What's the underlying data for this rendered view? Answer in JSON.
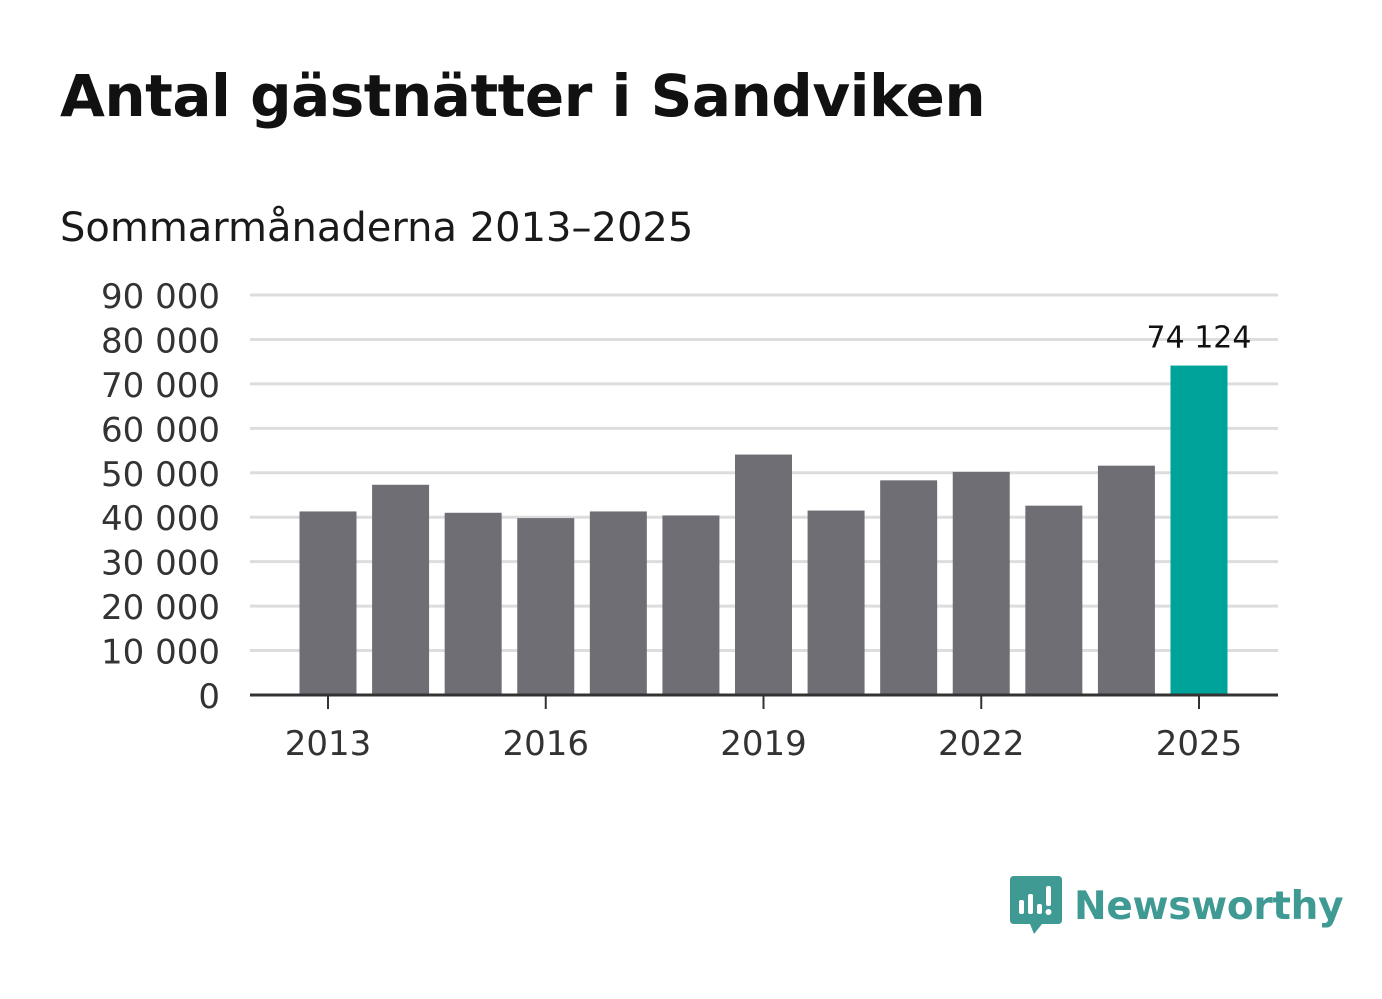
{
  "title": "Antal gästnätter i Sandviken",
  "subtitle": "Sommarmånaderna 2013–2025",
  "brand": {
    "name": "Newsworthy",
    "icon": "newsworthy-logo-icon",
    "color": "#3e9a93"
  },
  "colors": {
    "bar": "#6f6e75",
    "highlight": "#00a39a",
    "grid": "#dddddd",
    "axis": "#333333",
    "text": "#333333"
  },
  "chart_data": {
    "type": "bar",
    "categories": [
      "2013",
      "2014",
      "2015",
      "2016",
      "2017",
      "2018",
      "2019",
      "2020",
      "2021",
      "2022",
      "2023",
      "2024",
      "2025"
    ],
    "values": [
      41300,
      47300,
      41000,
      39800,
      41300,
      40400,
      54100,
      41500,
      48300,
      50200,
      42600,
      51600,
      74124
    ],
    "highlight_index": 12,
    "data_labels": [
      {
        "index": 12,
        "text": "74 124"
      }
    ],
    "x_tick_labels": [
      "2013",
      "2016",
      "2019",
      "2022",
      "2025"
    ],
    "y_tick_labels": [
      "0",
      "10 000",
      "20 000",
      "30 000",
      "40 000",
      "50 000",
      "60 000",
      "70 000",
      "80 000",
      "90 000"
    ],
    "ylim": [
      0,
      90000
    ],
    "grid": true,
    "legend": "none"
  }
}
